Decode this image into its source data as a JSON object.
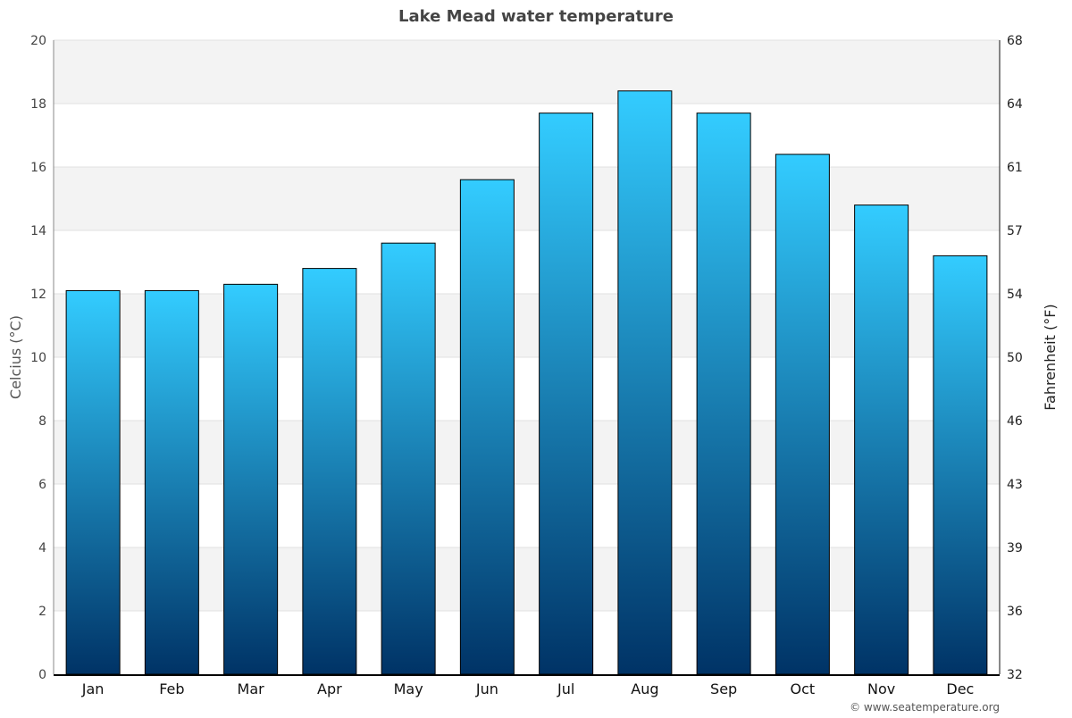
{
  "chart_data": {
    "type": "bar",
    "title": "Lake Mead water temperature",
    "categories": [
      "Jan",
      "Feb",
      "Mar",
      "Apr",
      "May",
      "Jun",
      "Jul",
      "Aug",
      "Sep",
      "Oct",
      "Nov",
      "Dec"
    ],
    "values": [
      12.1,
      12.1,
      12.3,
      12.8,
      13.6,
      15.6,
      17.7,
      18.4,
      17.7,
      16.4,
      14.8,
      13.2
    ],
    "ylabel": "Celcius (°C)",
    "ylabel_right": "Fahrenheit (°F)",
    "ylim": [
      0,
      20
    ],
    "yticks": [
      0,
      2,
      4,
      6,
      8,
      10,
      12,
      14,
      16,
      18,
      20
    ],
    "yticks_right": [
      "32",
      "36",
      "39",
      "43",
      "46",
      "50",
      "54",
      "57",
      "61",
      "64",
      "68"
    ],
    "grid": true,
    "bar_color_top": "#33ccff",
    "bar_color_bottom": "#003366",
    "band_color": "#f3f3f3"
  },
  "credit": "© www.seatemperature.org"
}
